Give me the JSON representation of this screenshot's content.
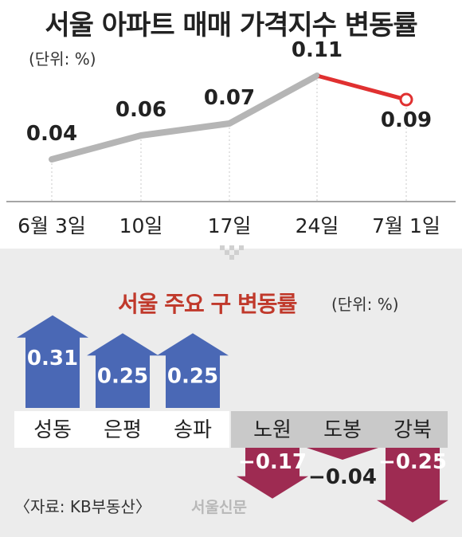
{
  "title": "서울 아파트 매매 가격지수 변동률",
  "unit_label": "(단위: %)",
  "chart_data": [
    {
      "type": "line",
      "title": "서울 아파트 매매 가격지수 변동률",
      "categories": [
        "6월 3일",
        "10일",
        "17일",
        "24일",
        "7월 1일"
      ],
      "values": [
        0.04,
        0.06,
        0.07,
        0.11,
        0.09
      ],
      "value_labels": [
        "0.04",
        "0.06",
        "0.07",
        "0.11",
        "0.09"
      ],
      "colors": {
        "line": "#b5b5b5",
        "highlight": "#e03030",
        "guides": "#c8c8c8"
      }
    },
    {
      "type": "bar",
      "title": "서울 주요 구 변동률",
      "unit_label": "(단위: %)",
      "categories": [
        "성동",
        "은평",
        "송파",
        "노원",
        "도봉",
        "강북"
      ],
      "values": [
        0.31,
        0.25,
        0.25,
        -0.17,
        -0.04,
        -0.25
      ],
      "value_labels": [
        "0.31",
        "0.25",
        "0.25",
        "−0.17",
        "−0.04",
        "−0.25"
      ],
      "colors": {
        "positive": "#4a68b5",
        "negative": "#9e2b52"
      }
    }
  ],
  "source": "〈자료: KB부동산〉",
  "watermark": "서울신문"
}
